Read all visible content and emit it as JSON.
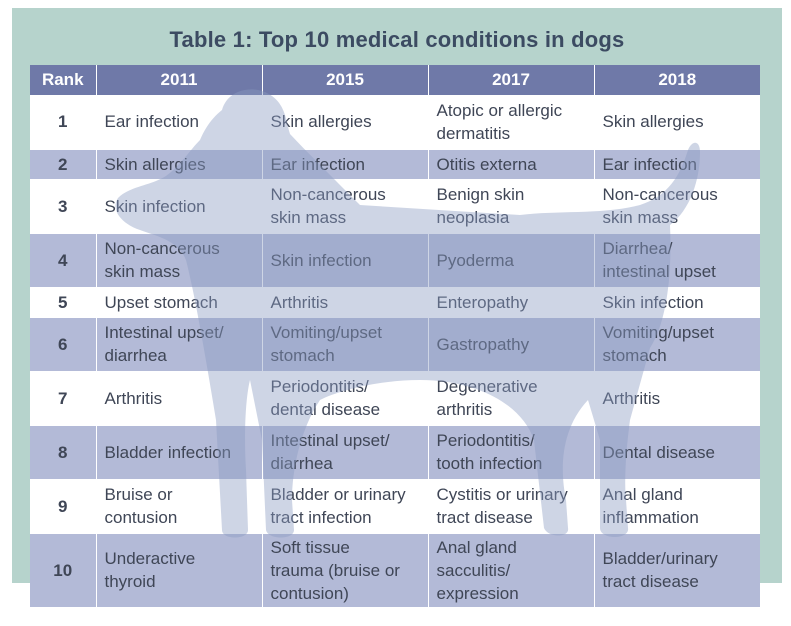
{
  "title": "Table 1: Top 10 medical conditions in dogs",
  "colors": {
    "panel": "#b6d3cc",
    "header": "#6f79a8",
    "band": "#b3bad7",
    "title": "#3c4b62",
    "watermark": "#8a9ac0"
  },
  "watermark_icon": "dog-silhouette-icon",
  "headers": [
    "Rank",
    "2011",
    "2015",
    "2017",
    "2018"
  ],
  "rows": [
    {
      "rank": "1",
      "cells": [
        [
          "Ear infection"
        ],
        [
          "Skin allergies"
        ],
        [
          "Atopic or allergic",
          "dermatitis"
        ],
        [
          "Skin allergies"
        ]
      ]
    },
    {
      "rank": "2",
      "cells": [
        [
          "Skin allergies"
        ],
        [
          "Ear infection"
        ],
        [
          "Otitis externa"
        ],
        [
          "Ear infection"
        ]
      ]
    },
    {
      "rank": "3",
      "cells": [
        [
          "Skin infection"
        ],
        [
          "Non-cancerous",
          "skin mass"
        ],
        [
          "Benign skin",
          "neoplasia"
        ],
        [
          "Non-cancerous",
          "skin mass"
        ]
      ]
    },
    {
      "rank": "4",
      "cells": [
        [
          "Non-cancerous",
          "skin mass"
        ],
        [
          "Skin infection"
        ],
        [
          "Pyoderma"
        ],
        [
          "Diarrhea/",
          "intestinal upset"
        ]
      ]
    },
    {
      "rank": "5",
      "cells": [
        [
          "Upset stomach"
        ],
        [
          "Arthritis"
        ],
        [
          "Enteropathy"
        ],
        [
          "Skin infection"
        ]
      ]
    },
    {
      "rank": "6",
      "cells": [
        [
          "Intestinal upset/",
          "diarrhea"
        ],
        [
          "Vomiting/upset",
          "stomach"
        ],
        [
          "Gastropathy"
        ],
        [
          "Vomiting/upset",
          "stomach"
        ]
      ]
    },
    {
      "rank": "7",
      "cells": [
        [
          "Arthritis"
        ],
        [
          "Periodontitis/",
          "dental disease"
        ],
        [
          "Degenerative",
          "arthritis"
        ],
        [
          "Arthritis"
        ]
      ]
    },
    {
      "rank": "8",
      "cells": [
        [
          "Bladder infection"
        ],
        [
          "Intestinal upset/",
          "diarrhea"
        ],
        [
          "Periodontitis/",
          "tooth infection"
        ],
        [
          "Dental disease"
        ]
      ]
    },
    {
      "rank": "9",
      "cells": [
        [
          "Bruise or",
          "contusion"
        ],
        [
          "Bladder or urinary",
          "tract infection"
        ],
        [
          "Cystitis or urinary",
          "tract disease"
        ],
        [
          "Anal gland",
          "inflammation"
        ]
      ]
    },
    {
      "rank": "10",
      "cells": [
        [
          "Underactive",
          "thyroid"
        ],
        [
          "Soft tissue",
          "trauma (bruise or",
          "contusion)"
        ],
        [
          "Anal gland",
          "sacculitis/",
          "expression"
        ],
        [
          "Bladder/urinary",
          "tract disease"
        ]
      ]
    }
  ]
}
